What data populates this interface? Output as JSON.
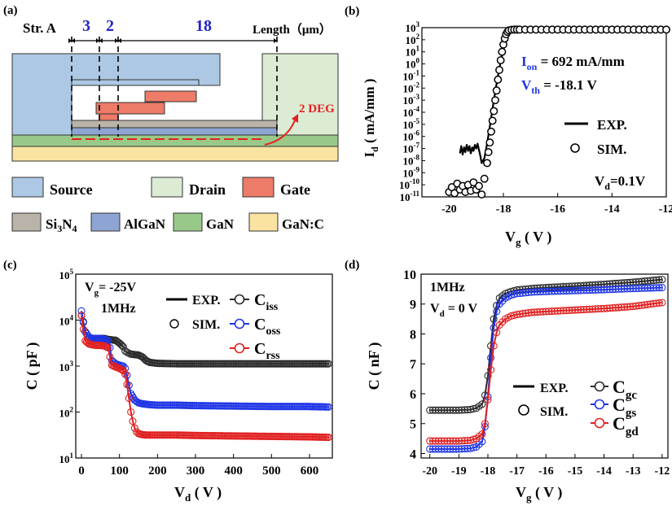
{
  "panel_labels": [
    "(a)",
    "(b)",
    "(c)",
    "(d)"
  ],
  "structure": {
    "name": "Str. A",
    "dims": [
      "3",
      "2",
      "18"
    ],
    "length_label": "Length（μm）",
    "deg_label": "2 DEG",
    "legend": {
      "row1": [
        "Source",
        "Drain",
        "Gate"
      ],
      "row2": [
        "Si3N4",
        "AlGaN",
        "GaN",
        "GaN:C"
      ]
    },
    "colors": {
      "source": "#adc8e4",
      "drain": "#dcebd4",
      "gate": "#ec7b68",
      "si3n4": "#bab3a9",
      "algan": "#8ea4d2",
      "gan": "#99c989",
      "ganc": "#f9e3a0",
      "deg": "#e62020",
      "dims": "#2323c8"
    }
  },
  "chart_data": [
    {
      "panel": "(b)",
      "type": "scatter",
      "xlabel": "Vg ( V )",
      "ylabel": "Id ( mA/mm )",
      "xlim": [
        -21,
        -12
      ],
      "ylim_log10": [
        -11,
        3
      ],
      "y_scale": "log",
      "xticks": [
        -20,
        -18,
        -16,
        -14,
        -12
      ],
      "yticks_exp": [
        -11,
        -10,
        -9,
        -8,
        -7,
        -6,
        -5,
        -4,
        -3,
        -2,
        -1,
        0,
        1,
        2,
        3
      ],
      "legend": [
        "EXP.",
        "SIM."
      ],
      "annotations": {
        "ion_label": "Ion",
        "ion_value": "= 692 mA/mm",
        "vth_label": "Vth",
        "vth_value": "= -18.1 V",
        "vd": "Vd=0.1V"
      },
      "series": [
        {
          "name": "EXP.",
          "style": "line",
          "x": [
            -19.6,
            -19.55,
            -19.5,
            -19.45,
            -19.4,
            -19.35,
            -19.3,
            -19.25,
            -19.2,
            -19.15,
            -19.1,
            -19.05,
            -19.0,
            -18.95,
            -18.9,
            -18.85,
            -18.8,
            -18.7,
            -18.6,
            -18.5,
            -18.4,
            -18.3,
            -18.2,
            -18.1,
            -18.0,
            -17.9,
            -17.8,
            -17.7,
            -17.6,
            -17.5,
            -17.3,
            -17.0,
            -16.5,
            -16.0,
            -15.0,
            -14.0,
            -13.0,
            -12.0
          ],
          "log10y": [
            -7.4,
            -6.8,
            -7.5,
            -6.9,
            -7.3,
            -6.7,
            -7.2,
            -6.8,
            -7.4,
            -6.9,
            -7.2,
            -6.7,
            -7.0,
            -6.6,
            -7.1,
            -7.6,
            -8.2,
            -7.8,
            -6.6,
            -5.2,
            -3.7,
            -2.3,
            -1.0,
            0.2,
            1.2,
            2.0,
            2.5,
            2.75,
            2.82,
            2.84,
            2.84,
            2.84,
            2.84,
            2.84,
            2.84,
            2.84,
            2.84,
            2.84
          ]
        },
        {
          "name": "SIM.",
          "style": "marker",
          "x": [
            -20.0,
            -19.9,
            -19.8,
            -19.7,
            -19.6,
            -19.5,
            -19.4,
            -19.3,
            -19.2,
            -19.1,
            -19.0,
            -18.9,
            -18.8,
            -18.7,
            -18.6,
            -18.55,
            -18.5,
            -18.45,
            -18.4,
            -18.35,
            -18.3,
            -18.25,
            -18.2,
            -18.15,
            -18.1,
            -18.05,
            -18.0,
            -17.95,
            -17.9,
            -17.85,
            -17.8,
            -17.7,
            -17.6,
            -17.5,
            -17.4,
            -17.2,
            -17.0,
            -16.8,
            -16.6,
            -16.4,
            -16.2,
            -16.0,
            -15.8,
            -15.6,
            -15.4,
            -15.2,
            -15.0,
            -14.8,
            -14.6,
            -14.4,
            -14.2,
            -14.0,
            -13.8,
            -13.6,
            -13.4,
            -13.2,
            -13.0,
            -12.8,
            -12.6,
            -12.4,
            -12.2,
            -12.0
          ],
          "log10y": [
            -10.6,
            -10.2,
            -10.7,
            -9.9,
            -10.4,
            -10.1,
            -10.6,
            -10.0,
            -10.5,
            -9.8,
            -10.4,
            -10.1,
            -10.8,
            -9.5,
            -8.2,
            -7.3,
            -6.5,
            -5.6,
            -4.7,
            -3.9,
            -3.0,
            -2.2,
            -1.3,
            -0.5,
            0.3,
            1.0,
            1.6,
            2.1,
            2.45,
            2.65,
            2.78,
            2.83,
            2.84,
            2.84,
            2.84,
            2.84,
            2.84,
            2.84,
            2.84,
            2.84,
            2.84,
            2.84,
            2.84,
            2.84,
            2.84,
            2.84,
            2.84,
            2.84,
            2.84,
            2.84,
            2.84,
            2.84,
            2.84,
            2.84,
            2.84,
            2.84,
            2.84,
            2.84,
            2.84,
            2.84,
            2.84,
            2.84
          ]
        }
      ]
    },
    {
      "panel": "(c)",
      "type": "line",
      "xlabel": "Vd ( V )",
      "ylabel": "C ( pF )",
      "xlim": [
        -15,
        660
      ],
      "ylim_log10": [
        1,
        5
      ],
      "y_scale": "log",
      "xticks": [
        0,
        100,
        200,
        300,
        400,
        500,
        600
      ],
      "yticks_exp": [
        1,
        2,
        3,
        4,
        5
      ],
      "legend": [
        "EXP.",
        "SIM.",
        "Ciss",
        "Coss",
        "Crss"
      ],
      "annotations": {
        "vg": "Vg= -25V",
        "freq": "1MHz"
      },
      "series": [
        {
          "name": "Ciss",
          "color": "#2a2a2a",
          "x": [
            0,
            5,
            10,
            20,
            30,
            40,
            50,
            60,
            70,
            80,
            90,
            100,
            110,
            115,
            120,
            125,
            130,
            140,
            150,
            160,
            170,
            180,
            200,
            250,
            300,
            400,
            500,
            600,
            650
          ],
          "log10y": [
            4.1,
            3.95,
            3.75,
            3.62,
            3.6,
            3.6,
            3.6,
            3.6,
            3.58,
            3.57,
            3.56,
            3.5,
            3.42,
            3.33,
            3.3,
            3.28,
            3.26,
            3.25,
            3.24,
            3.2,
            3.12,
            3.08,
            3.06,
            3.05,
            3.05,
            3.05,
            3.05,
            3.05,
            3.05
          ]
        },
        {
          "name": "Coss",
          "color": "#1f35e6",
          "x": [
            0,
            5,
            10,
            20,
            30,
            40,
            50,
            60,
            70,
            75,
            80,
            90,
            100,
            110,
            115,
            120,
            125,
            130,
            140,
            150,
            160,
            170,
            180,
            200,
            250,
            300,
            400,
            500,
            600,
            650
          ],
          "log10y": [
            4.2,
            3.97,
            3.75,
            3.62,
            3.6,
            3.6,
            3.6,
            3.58,
            3.55,
            3.4,
            3.12,
            3.05,
            3.02,
            3.0,
            2.95,
            2.8,
            2.58,
            2.4,
            2.26,
            2.2,
            2.18,
            2.17,
            2.16,
            2.15,
            2.15,
            2.14,
            2.13,
            2.12,
            2.12,
            2.11
          ]
        },
        {
          "name": "Crss",
          "color": "#e02020",
          "x": [
            0,
            5,
            10,
            20,
            30,
            40,
            50,
            60,
            70,
            75,
            80,
            90,
            100,
            110,
            115,
            120,
            125,
            130,
            135,
            140,
            145,
            150,
            160,
            170,
            180,
            200,
            250,
            300,
            400,
            500,
            600,
            650
          ],
          "log10y": [
            4.1,
            3.8,
            3.55,
            3.48,
            3.46,
            3.45,
            3.45,
            3.44,
            3.4,
            3.2,
            3.02,
            2.98,
            2.95,
            2.9,
            2.82,
            2.6,
            2.3,
            2.0,
            1.8,
            1.65,
            1.57,
            1.53,
            1.51,
            1.5,
            1.5,
            1.5,
            1.5,
            1.49,
            1.48,
            1.47,
            1.46,
            1.45
          ]
        }
      ]
    },
    {
      "panel": "(d)",
      "type": "line",
      "xlabel": "Vg ( V )",
      "ylabel": "C ( nF )",
      "xlim": [
        -20.3,
        -11.8
      ],
      "ylim": [
        3.85,
        10
      ],
      "xticks": [
        -20,
        -19,
        -18,
        -17,
        -16,
        -15,
        -14,
        -13,
        -12
      ],
      "yticks": [
        4,
        5,
        6,
        7,
        8,
        9,
        10
      ],
      "legend": [
        "EXP.",
        "SIM.",
        "Cgc",
        "Cgs",
        "Cgd"
      ],
      "annotations": {
        "freq": "1MHz",
        "vd": "Vd = 0 V"
      },
      "series": [
        {
          "name": "Cgc",
          "color": "#2a2a2a",
          "x": [
            -20,
            -19.5,
            -19,
            -18.6,
            -18.4,
            -18.2,
            -18.1,
            -18.0,
            -17.9,
            -17.8,
            -17.7,
            -17.6,
            -17.4,
            -17.2,
            -17.0,
            -16.5,
            -16.0,
            -15.0,
            -14.0,
            -13.0,
            -12.0
          ],
          "y": [
            5.45,
            5.45,
            5.45,
            5.47,
            5.52,
            5.65,
            5.95,
            6.6,
            7.6,
            8.5,
            8.95,
            9.2,
            9.35,
            9.42,
            9.47,
            9.52,
            9.55,
            9.6,
            9.66,
            9.73,
            9.82
          ]
        },
        {
          "name": "Cgs",
          "color": "#1f35e6",
          "x": [
            -20,
            -19.5,
            -19,
            -18.6,
            -18.4,
            -18.2,
            -18.1,
            -18.0,
            -17.9,
            -17.8,
            -17.7,
            -17.6,
            -17.4,
            -17.2,
            -17.0,
            -16.5,
            -16.0,
            -15.0,
            -14.0,
            -13.0,
            -12.0
          ],
          "y": [
            4.15,
            4.15,
            4.15,
            4.17,
            4.22,
            4.4,
            4.9,
            5.9,
            7.2,
            8.2,
            8.75,
            9.0,
            9.2,
            9.3,
            9.35,
            9.4,
            9.42,
            9.45,
            9.48,
            9.52,
            9.55
          ]
        },
        {
          "name": "Cgd",
          "color": "#e02020",
          "x": [
            -20,
            -19.5,
            -19,
            -18.6,
            -18.4,
            -18.2,
            -18.1,
            -18.0,
            -17.9,
            -17.8,
            -17.7,
            -17.6,
            -17.4,
            -17.2,
            -17.0,
            -16.5,
            -16.0,
            -15.0,
            -14.0,
            -13.0,
            -12.0
          ],
          "y": [
            4.42,
            4.42,
            4.42,
            4.44,
            4.5,
            4.65,
            5.0,
            5.8,
            6.8,
            7.6,
            8.05,
            8.3,
            8.5,
            8.6,
            8.65,
            8.72,
            8.75,
            8.8,
            8.85,
            8.92,
            9.05
          ]
        }
      ]
    }
  ]
}
